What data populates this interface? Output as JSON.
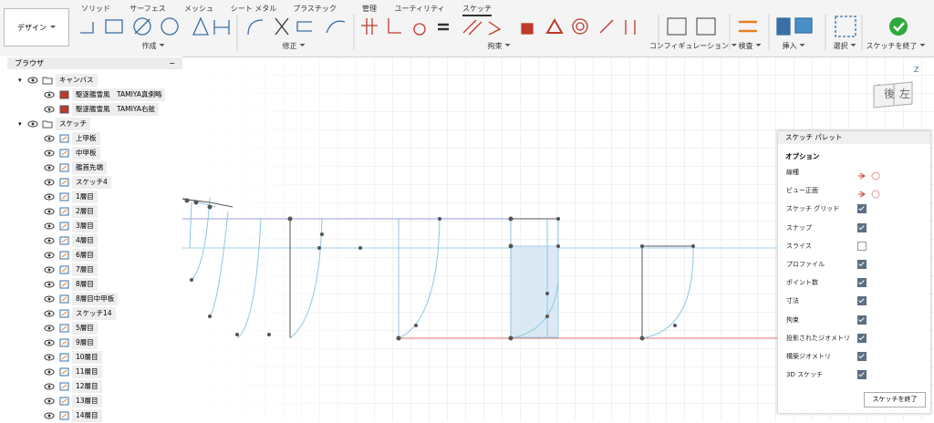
{
  "toolbar": {
    "workspace": "デザイン",
    "tabs": [
      "ソリッド",
      "サーフェス",
      "メッシュ",
      "シート メタル",
      "プラスチック",
      "管理",
      "ユーティリティ",
      "スケッチ"
    ],
    "active_tab": 7,
    "groups": [
      "作成",
      "修正",
      "拘束",
      "コンフィギュレーション",
      "検査",
      "挿入",
      "選択",
      "スケッチを終了"
    ]
  },
  "browser": {
    "title": "ブラウザ",
    "tree": [
      {
        "label": "キャンバス",
        "children": [
          "駆逐艦雪風　TAMIYA真側略",
          "駆逐艦雪風　TAMIYA右舷"
        ]
      },
      {
        "label": "スケッチ",
        "children": [
          "上甲板",
          "中甲板",
          "艦首先端",
          "スケッチ4",
          "1層目",
          "2層目",
          "3層目",
          "4層目",
          "6層目",
          "7層目",
          "8層目",
          "8層目中甲板",
          "スケッチ14",
          "5層目",
          "9層目",
          "10層目",
          "11層目",
          "12層目",
          "13層目",
          "14層目"
        ]
      }
    ]
  },
  "viewcube": {
    "back": "後",
    "left": "左",
    "axis": "Z"
  },
  "palette": {
    "title": "スケッチ パレット",
    "section": "オプション",
    "rows": [
      {
        "label": "線種"
      },
      {
        "label": "ビュー正面"
      },
      {
        "label": "スケッチ グリッド",
        "checked": true
      },
      {
        "label": "スナップ",
        "checked": true
      },
      {
        "label": "スライス",
        "checked": false
      },
      {
        "label": "プロファイル",
        "checked": true
      },
      {
        "label": "ポイント数",
        "checked": true
      },
      {
        "label": "寸法",
        "checked": true
      },
      {
        "label": "拘束",
        "checked": true
      },
      {
        "label": "投影されたジオメトリ",
        "checked": true
      },
      {
        "label": "構築ジオメトリ",
        "checked": true
      },
      {
        "label": "3D スケッチ",
        "checked": true
      }
    ],
    "button": "スケッチを終了"
  }
}
